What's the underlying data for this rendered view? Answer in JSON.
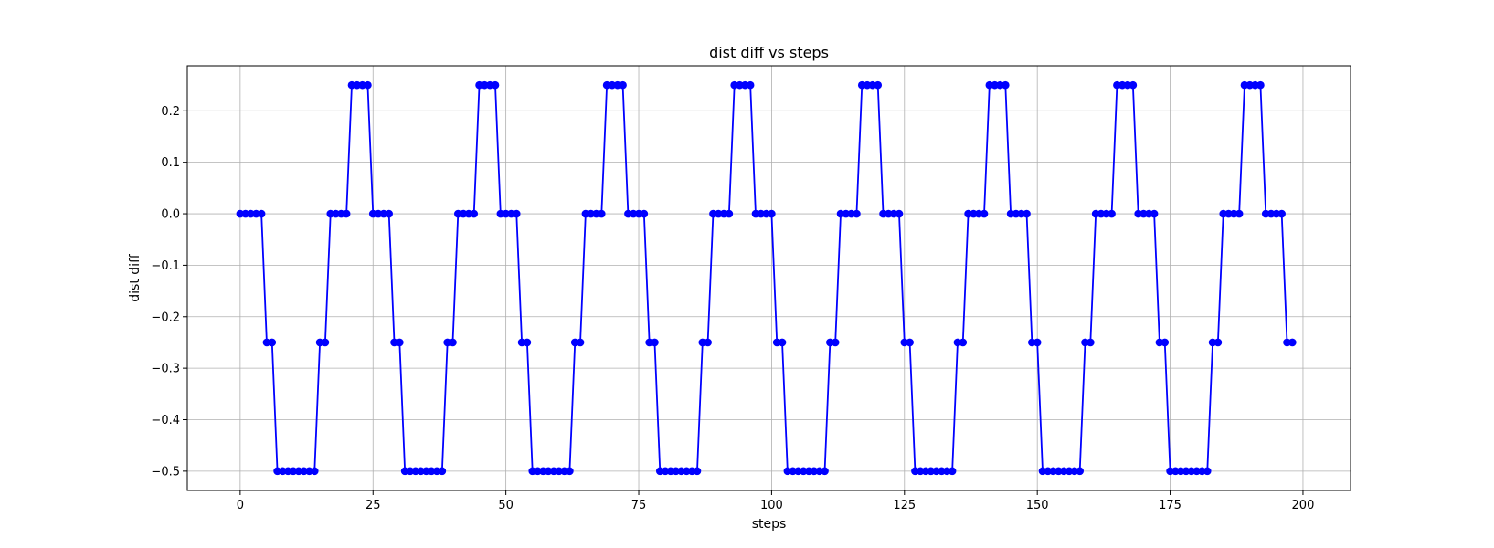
{
  "chart_data": {
    "type": "line",
    "title": "dist diff vs steps",
    "xlabel": "steps",
    "ylabel": "dist diff",
    "xlim": [
      -9.95,
      208.95
    ],
    "ylim": [
      -0.5375,
      0.2875
    ],
    "xticks": [
      0,
      25,
      50,
      75,
      100,
      125,
      150,
      175,
      200
    ],
    "xtick_labels": [
      "0",
      "25",
      "50",
      "75",
      "100",
      "125",
      "150",
      "175",
      "200"
    ],
    "yticks": [
      0.2,
      0.1,
      0.0,
      -0.1,
      -0.2,
      -0.3,
      -0.4,
      -0.5
    ],
    "ytick_labels": [
      "0.2",
      "0.1",
      "0.0",
      "−0.1",
      "−0.2",
      "−0.3",
      "−0.4",
      "−0.5"
    ],
    "grid": true,
    "series": [
      {
        "color": "#0000ff",
        "marker": "circle",
        "x": [
          0,
          1,
          2,
          3,
          4,
          5,
          6,
          7,
          8,
          9,
          10,
          11,
          12,
          13,
          14,
          15,
          16,
          17,
          18,
          19,
          20,
          21,
          22,
          23,
          24,
          25,
          26,
          27,
          28,
          29,
          30,
          31,
          32,
          33,
          34,
          35,
          36,
          37,
          38,
          39,
          40,
          41,
          42,
          43,
          44,
          45,
          46,
          47,
          48,
          49,
          50,
          51,
          52,
          53,
          54,
          55,
          56,
          57,
          58,
          59,
          60,
          61,
          62,
          63,
          64,
          65,
          66,
          67,
          68,
          69,
          70,
          71,
          72,
          73,
          74,
          75,
          76,
          77,
          78,
          79,
          80,
          81,
          82,
          83,
          84,
          85,
          86,
          87,
          88,
          89,
          90,
          91,
          92,
          93,
          94,
          95,
          96,
          97,
          98,
          99,
          100,
          101,
          102,
          103,
          104,
          105,
          106,
          107,
          108,
          109,
          110,
          111,
          112,
          113,
          114,
          115,
          116,
          117,
          118,
          119,
          120,
          121,
          122,
          123,
          124,
          125,
          126,
          127,
          128,
          129,
          130,
          131,
          132,
          133,
          134,
          135,
          136,
          137,
          138,
          139,
          140,
          141,
          142,
          143,
          144,
          145,
          146,
          147,
          148,
          149,
          150,
          151,
          152,
          153,
          154,
          155,
          156,
          157,
          158,
          159,
          160,
          161,
          162,
          163,
          164,
          165,
          166,
          167,
          168,
          169,
          170,
          171,
          172,
          173,
          174,
          175,
          176,
          177,
          178,
          179,
          180,
          181,
          182,
          183,
          184,
          185,
          186,
          187,
          188,
          189,
          190,
          191,
          192,
          193,
          194,
          195,
          196,
          197,
          198
        ],
        "y": [
          0,
          0,
          0,
          0,
          0,
          -0.25,
          -0.25,
          -0.5,
          -0.5,
          -0.5,
          -0.5,
          -0.5,
          -0.5,
          -0.5,
          -0.5,
          -0.25,
          -0.25,
          0,
          0,
          0,
          0,
          0.25,
          0.25,
          0.25,
          0.25,
          0,
          0,
          0,
          0,
          -0.25,
          -0.25,
          -0.5,
          -0.5,
          -0.5,
          -0.5,
          -0.5,
          -0.5,
          -0.5,
          -0.5,
          -0.25,
          -0.25,
          0,
          0,
          0,
          0,
          0.25,
          0.25,
          0.25,
          0.25,
          0,
          0,
          0,
          0,
          -0.25,
          -0.25,
          -0.5,
          -0.5,
          -0.5,
          -0.5,
          -0.5,
          -0.5,
          -0.5,
          -0.5,
          -0.25,
          -0.25,
          0,
          0,
          0,
          0,
          0.25,
          0.25,
          0.25,
          0.25,
          0,
          0,
          0,
          0,
          -0.25,
          -0.25,
          -0.5,
          -0.5,
          -0.5,
          -0.5,
          -0.5,
          -0.5,
          -0.5,
          -0.5,
          -0.25,
          -0.25,
          0,
          0,
          0,
          0,
          0.25,
          0.25,
          0.25,
          0.25,
          0,
          0,
          0,
          0,
          -0.25,
          -0.25,
          -0.5,
          -0.5,
          -0.5,
          -0.5,
          -0.5,
          -0.5,
          -0.5,
          -0.5,
          -0.25,
          -0.25,
          0,
          0,
          0,
          0,
          0.25,
          0.25,
          0.25,
          0.25,
          0,
          0,
          0,
          0,
          -0.25,
          -0.25,
          -0.5,
          -0.5,
          -0.5,
          -0.5,
          -0.5,
          -0.5,
          -0.5,
          -0.5,
          -0.25,
          -0.25,
          0,
          0,
          0,
          0,
          0.25,
          0.25,
          0.25,
          0.25,
          0,
          0,
          0,
          0,
          -0.25,
          -0.25,
          -0.5,
          -0.5,
          -0.5,
          -0.5,
          -0.5,
          -0.5,
          -0.5,
          -0.5,
          -0.25,
          -0.25,
          0,
          0,
          0,
          0,
          0.25,
          0.25,
          0.25,
          0.25,
          0,
          0,
          0,
          0,
          -0.25,
          -0.25,
          -0.5,
          -0.5,
          -0.5,
          -0.5,
          -0.5,
          -0.5,
          -0.5,
          -0.5,
          -0.25,
          -0.25,
          0,
          0,
          0,
          0,
          0.25,
          0.25,
          0.25,
          0.25,
          0,
          0,
          0,
          0,
          -0.25,
          -0.25
        ]
      }
    ]
  }
}
